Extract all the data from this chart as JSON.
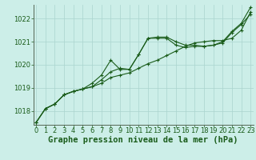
{
  "title": "Graphe pression niveau de la mer (hPa)",
  "background_color": "#cceee8",
  "grid_color": "#aad4ce",
  "line_color": "#1a5c1a",
  "x": [
    0,
    1,
    2,
    3,
    4,
    5,
    6,
    7,
    8,
    9,
    10,
    11,
    12,
    13,
    14,
    15,
    16,
    17,
    18,
    19,
    20,
    21,
    22,
    23
  ],
  "series1": [
    1017.5,
    1018.1,
    1018.3,
    1018.7,
    1018.85,
    1018.95,
    1019.05,
    1019.2,
    1019.45,
    1019.55,
    1019.65,
    1019.85,
    1020.05,
    1020.2,
    1020.4,
    1020.6,
    1020.8,
    1020.95,
    1021.0,
    1021.05,
    1021.05,
    1021.15,
    1021.5,
    1022.3
  ],
  "series2": [
    1017.5,
    1018.1,
    1018.3,
    1018.7,
    1018.85,
    1018.95,
    1019.2,
    1019.55,
    1020.2,
    1019.8,
    1019.8,
    1020.45,
    1021.15,
    1021.15,
    1021.15,
    1020.85,
    1020.75,
    1020.8,
    1020.8,
    1020.85,
    1020.95,
    1021.4,
    1021.75,
    1022.2
  ],
  "series3": [
    1017.5,
    1018.1,
    1018.3,
    1018.7,
    1018.85,
    1018.95,
    1019.05,
    1019.35,
    1019.7,
    1019.85,
    1019.8,
    1020.45,
    1021.15,
    1021.2,
    1021.2,
    1021.0,
    1020.85,
    1020.85,
    1020.8,
    1020.85,
    1021.0,
    1021.45,
    1021.8,
    1022.5
  ],
  "ylim": [
    1017.4,
    1022.6
  ],
  "yticks": [
    1018,
    1019,
    1020,
    1021,
    1022
  ],
  "xlim": [
    -0.3,
    23.3
  ],
  "xticks": [
    0,
    1,
    2,
    3,
    4,
    5,
    6,
    7,
    8,
    9,
    10,
    11,
    12,
    13,
    14,
    15,
    16,
    17,
    18,
    19,
    20,
    21,
    22,
    23
  ],
  "title_fontsize": 7.5,
  "tick_fontsize": 6,
  "marker": "+",
  "marker_size": 3.5,
  "linewidth": 0.8
}
